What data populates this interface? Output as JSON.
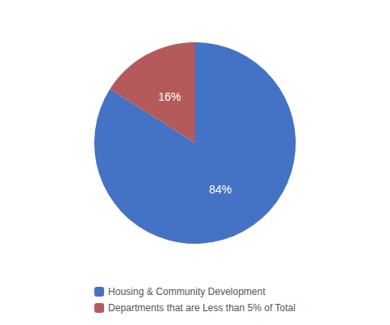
{
  "chart_data": {
    "type": "pie",
    "categories": [
      "Housing & Community Development",
      "Departments that are Less than 5% of Total"
    ],
    "values": [
      84,
      16
    ],
    "value_labels": [
      "84%",
      "16%"
    ],
    "colors": [
      "#4472C4",
      "#B55A5A"
    ],
    "data_labels": true,
    "legend": "bottom"
  }
}
